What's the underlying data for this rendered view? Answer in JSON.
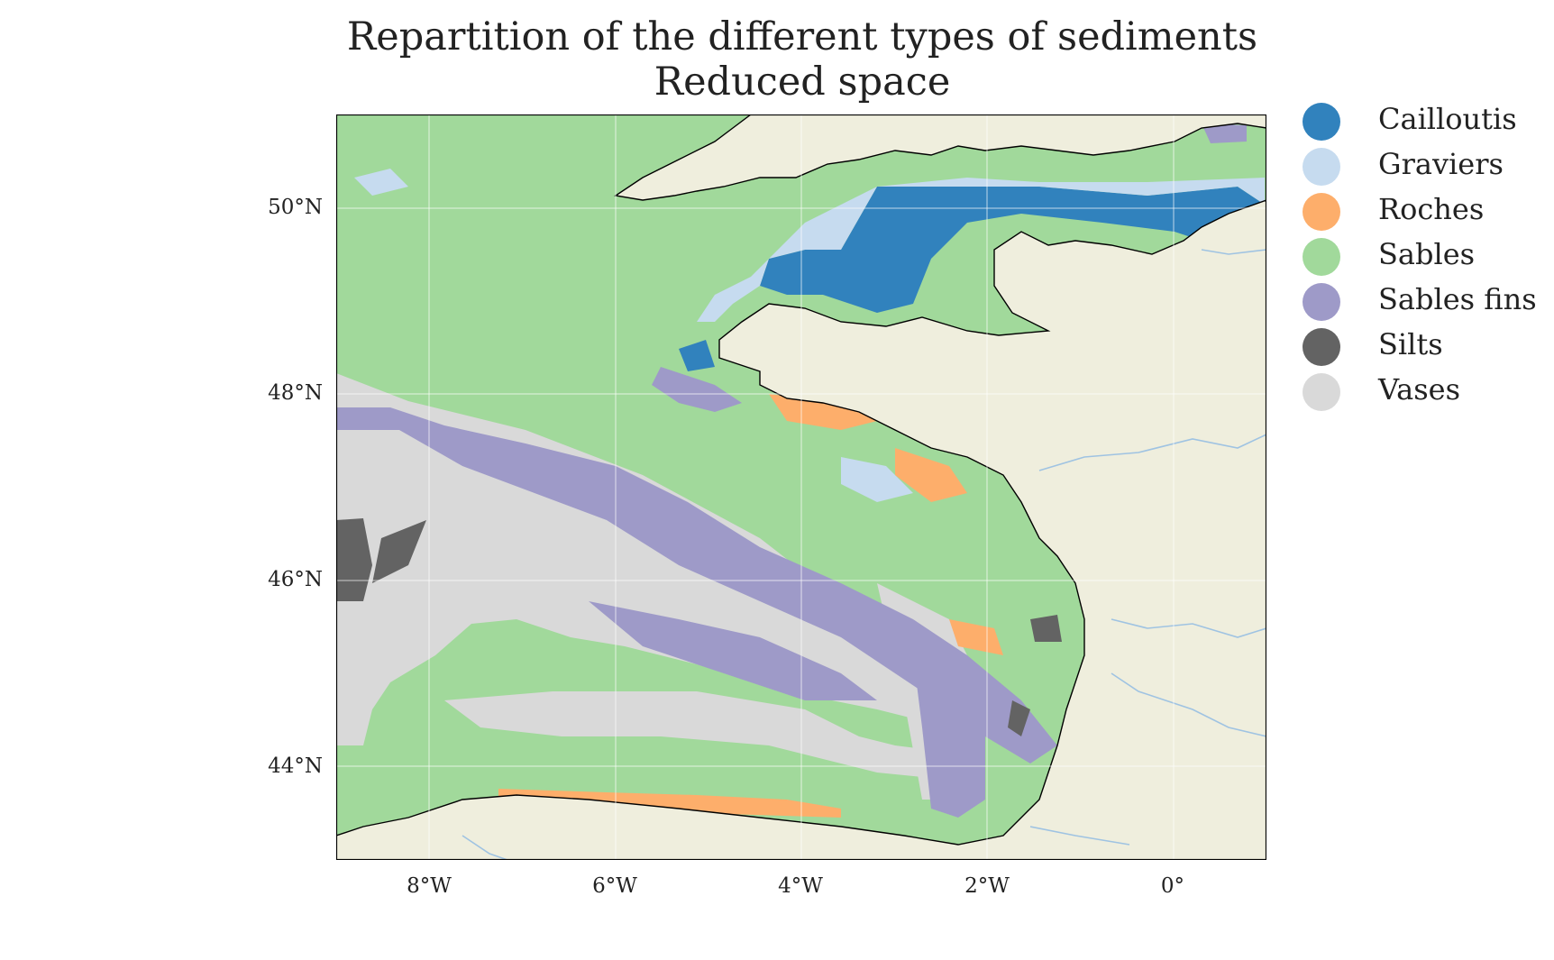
{
  "title": {
    "line1": "Repartition of the different types of sediments",
    "line2": "Reduced space"
  },
  "map": {
    "region": "Bay of Biscay and English Channel",
    "lon_range": [
      -9,
      1
    ],
    "lat_range": [
      43.2,
      51.2
    ],
    "lat_ticks": [
      "50°N",
      "48°N",
      "46°N",
      "44°N"
    ],
    "lon_ticks": [
      "8°W",
      "6°W",
      "4°W",
      "2°W",
      "0°"
    ],
    "colors": {
      "land": "#efeedd",
      "coastline": "#000000",
      "rivers": "#9fc3e2",
      "gridlines": "#ffffff",
      "frame": "#000000"
    }
  },
  "legend": {
    "items": [
      {
        "label": "Cailloutis",
        "color": "#3182bd"
      },
      {
        "label": "Graviers",
        "color": "#c6dbef"
      },
      {
        "label": "Roches",
        "color": "#fdae6b"
      },
      {
        "label": "Sables",
        "color": "#a1d99b"
      },
      {
        "label": "Sables fins",
        "color": "#9e9ac8"
      },
      {
        "label": "Silts",
        "color": "#636363"
      },
      {
        "label": "Vases",
        "color": "#d9d9d9"
      }
    ]
  }
}
